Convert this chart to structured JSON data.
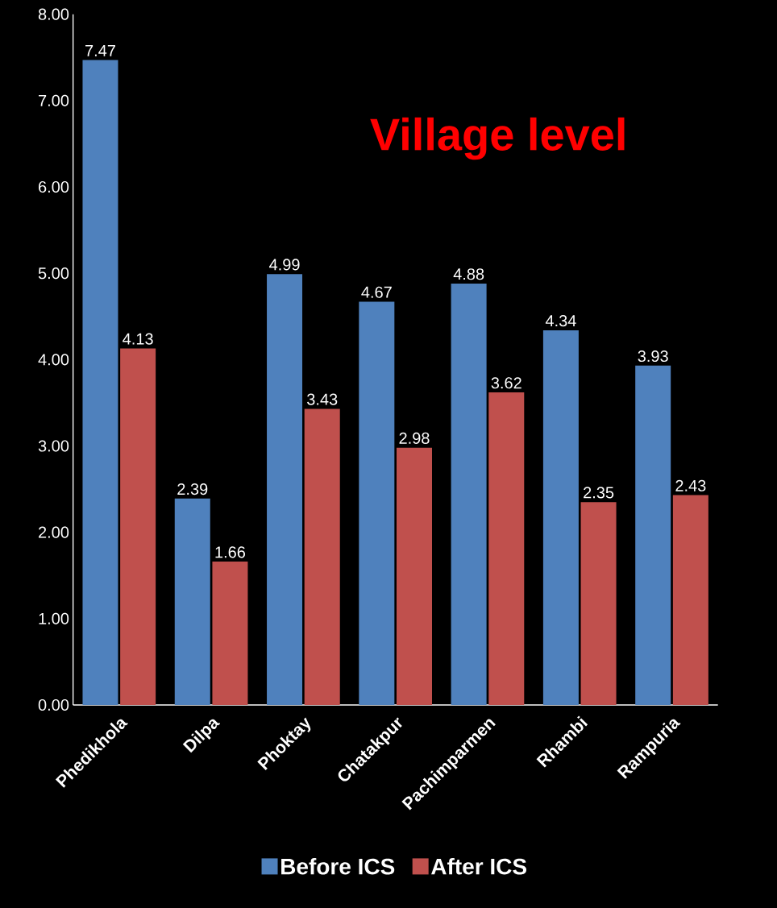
{
  "chart_data": {
    "type": "bar",
    "title": "Village level",
    "categories": [
      "Phedikhola",
      "Dilpa",
      "Phoktay",
      "Chatakpur",
      "Pachimparmen",
      "Rhambi",
      "Rampuria"
    ],
    "series": [
      {
        "name": "Before ICS",
        "color": "#4f81bd",
        "values": [
          7.47,
          2.39,
          4.99,
          4.67,
          4.88,
          4.34,
          3.93
        ]
      },
      {
        "name": "After ICS",
        "color": "#c0504d",
        "values": [
          4.13,
          1.66,
          3.43,
          2.98,
          3.62,
          2.35,
          2.43
        ]
      }
    ],
    "ylim": [
      0,
      8
    ],
    "yticks": [
      {
        "value": 0,
        "label": "0.00"
      },
      {
        "value": 1,
        "label": "1.00"
      },
      {
        "value": 2,
        "label": "2.00"
      },
      {
        "value": 3,
        "label": "3.00"
      },
      {
        "value": 4,
        "label": "4.00"
      },
      {
        "value": 5,
        "label": "5.00"
      },
      {
        "value": 6,
        "label": "6.00"
      },
      {
        "value": 7,
        "label": "7.00"
      },
      {
        "value": 8,
        "label": "8.00"
      }
    ],
    "data_labels": true,
    "legend": "bottom",
    "grid": false
  }
}
